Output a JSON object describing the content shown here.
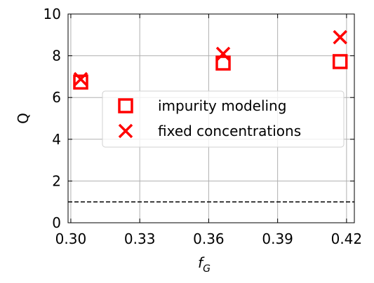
{
  "chart_data": {
    "type": "scatter",
    "xlabel": "f",
    "xlabel_subscript": "G",
    "ylabel": "Q",
    "xlim": [
      0.2988,
      0.4234
    ],
    "ylim": [
      0,
      10
    ],
    "xticks": [
      {
        "value": 0.3,
        "label": "0.30"
      },
      0.33,
      0.36,
      0.39,
      0.42
    ],
    "yticks": [
      0,
      2,
      4,
      6,
      8,
      10
    ],
    "grid": true,
    "hline": 1,
    "legend": "center right",
    "series": [
      {
        "name": "impurity modeling",
        "color": "#ff0000",
        "marker": "square",
        "x": [
          0.3043,
          0.3663,
          0.4172
        ],
        "values": [
          6.74,
          7.65,
          7.72
        ]
      },
      {
        "name": "fixed concentrations",
        "color": "#ff0000",
        "marker": "x",
        "x": [
          0.3043,
          0.3663,
          0.4172
        ],
        "values": [
          6.88,
          8.09,
          8.89
        ]
      }
    ]
  }
}
